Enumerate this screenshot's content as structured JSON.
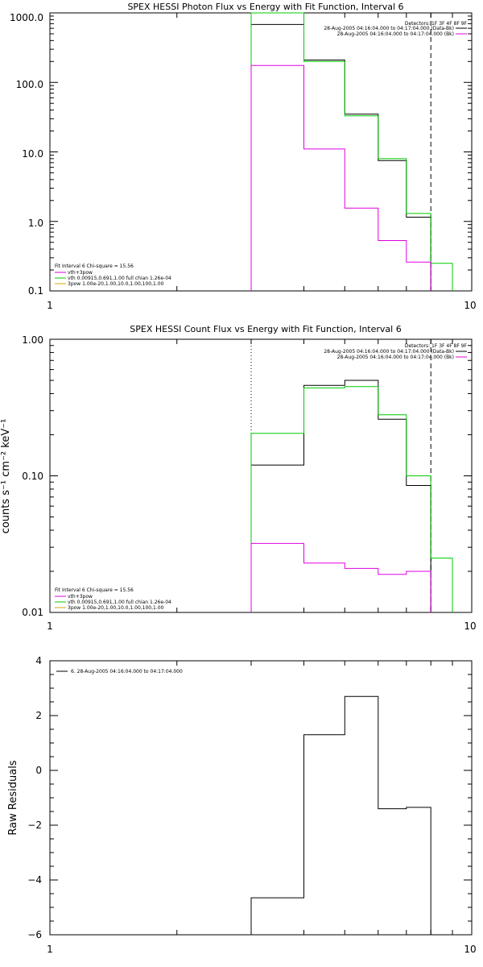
{
  "chart_data": [
    {
      "type": "line",
      "title": "SPEX HESSI Photon Flux vs Energy with Fit Function, Interval 6",
      "xlabel": "",
      "ylabel": "",
      "xscale": "log",
      "yscale": "log",
      "xlim": [
        1,
        10
      ],
      "ylim": [
        0.1,
        1000
      ],
      "x_tick_labels": [
        "1",
        "10"
      ],
      "y_tick_labels": [
        "0.1",
        "1.0",
        "10.0",
        "100.0",
        "1000.0"
      ],
      "bin_edges": [
        3,
        4,
        5,
        6,
        7,
        8,
        9
      ],
      "vlines": [
        {
          "x": 3,
          "style": "dotted"
        },
        {
          "x": 8,
          "style": "dashed"
        }
      ],
      "legend_top_right": [
        "Detectors: 1F 3F 4F 8F 9F",
        "28-Aug-2005 04:16:04.000 to 04:17:04.000 (Data-Bk)",
        "28-Aug-2005 04:16:04.000 to 04:17:04.000 (Bk)"
      ],
      "legend_bottom_left": [
        "Fit Interval  6    Chi-square = 15.56",
        "vth+3pow",
        "vth 0.00915,0.691,1.00   full chian 1.26e-04",
        "3pow 1.00e-20,1.00,10.0,1.00,100,1.00"
      ],
      "series": [
        {
          "color": "#000000",
          "values": [
            680,
            210,
            35,
            7.5,
            1.15,
            null
          ]
        },
        {
          "color": "#00cc00",
          "values": [
            1000,
            200,
            33,
            8,
            1.3,
            0.25
          ]
        },
        {
          "color": "#e000e0",
          "values": [
            175,
            11,
            1.55,
            0.53,
            0.26,
            null
          ]
        }
      ]
    },
    {
      "type": "line",
      "title": "SPEX HESSI Count Flux vs Energy with Fit Function, Interval 6",
      "xlabel": "",
      "ylabel": "counts s⁻¹ cm⁻² keV⁻¹",
      "xscale": "log",
      "yscale": "log",
      "xlim": [
        1,
        10
      ],
      "ylim": [
        0.01,
        1.0
      ],
      "x_tick_labels": [
        "1",
        "10"
      ],
      "y_tick_labels": [
        "0.01",
        "0.10",
        "1.00"
      ],
      "bin_edges": [
        3,
        4,
        5,
        6,
        7,
        8,
        9
      ],
      "vlines": [
        {
          "x": 3,
          "style": "dotted"
        },
        {
          "x": 8,
          "style": "dashed"
        }
      ],
      "legend_top_right": [
        "Detectors: 1F 3F 4F 8F 9F",
        "28-Aug-2005 04:16:04.000 to 04:17:04.000 (Data-Bk)",
        "28-Aug-2005 04:16:04.000 to 04:17:04.000 (Bk)"
      ],
      "legend_bottom_left": [
        "Fit Interval  6    Chi-square = 15.56",
        "vth+3pow",
        "vth 0.00915,0.691,1.00   full chian 1.26e-04",
        "3pow 1.00e-20,1.00,10.0,1.00,100,1.00"
      ],
      "series": [
        {
          "color": "#000000",
          "values": [
            0.12,
            0.46,
            0.5,
            0.26,
            0.085,
            null
          ]
        },
        {
          "color": "#00cc00",
          "values": [
            0.205,
            0.44,
            0.45,
            0.28,
            0.1,
            0.025
          ]
        },
        {
          "color": "#e000e0",
          "values": [
            0.032,
            0.023,
            0.021,
            0.019,
            0.02,
            null
          ]
        }
      ]
    },
    {
      "type": "line",
      "title": "",
      "xlabel": "",
      "ylabel": "Raw Residuals",
      "xscale": "log",
      "yscale": "linear",
      "xlim": [
        1,
        10
      ],
      "ylim": [
        -6,
        4
      ],
      "x_tick_labels": [
        "1",
        "10"
      ],
      "y_tick_labels": [
        "−6",
        "−4",
        "−2",
        "0",
        "2",
        "4"
      ],
      "bin_edges": [
        3,
        4,
        5,
        6,
        7,
        8
      ],
      "legend_top_left": [
        "6. 28-Aug-2005 04:16:04.000 to 04:17:04.000"
      ],
      "series": [
        {
          "color": "#000000",
          "values": [
            -4.65,
            1.3,
            2.7,
            -1.4,
            -1.35
          ]
        }
      ]
    }
  ]
}
